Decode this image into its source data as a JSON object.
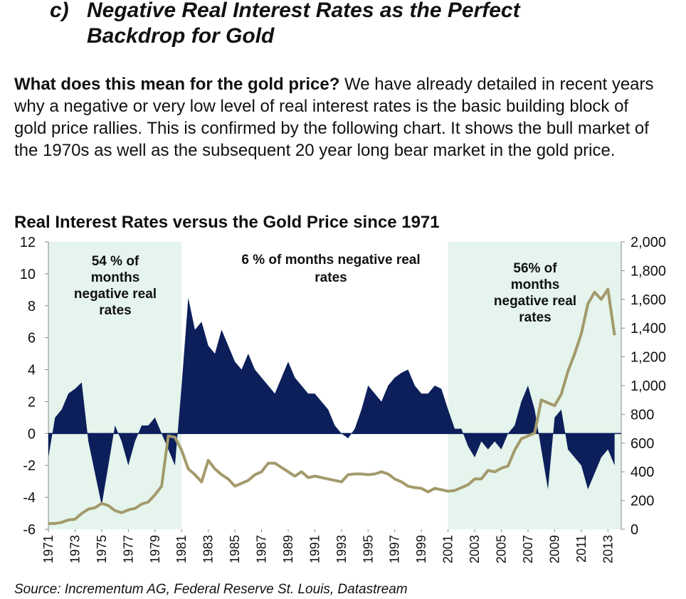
{
  "heading": {
    "marker": "c)",
    "title_lines": [
      "Negative Real Interest Rates as the Perfect",
      "Backdrop for Gold"
    ]
  },
  "intro": {
    "lead": "What does this mean for the gold price?",
    "text": "We have already detailed in recent years why a negative or very low level of real interest rates is the basic building block of gold price rallies. This is confirmed by the following chart. It shows the bull market of the 1970s as well as the subsequent 20 year long bear market in the gold price."
  },
  "chart_data": {
    "type": "area",
    "title": "Real Interest Rates versus the Gold Price since 1971",
    "x": [
      1971,
      1971.5,
      1972,
      1972.5,
      1973,
      1973.5,
      1974,
      1974.5,
      1975,
      1975.5,
      1976,
      1976.5,
      1977,
      1977.5,
      1978,
      1978.5,
      1979,
      1979.5,
      1980,
      1980.5,
      1981,
      1981.5,
      1982,
      1982.5,
      1983,
      1983.5,
      1984,
      1984.5,
      1985,
      1985.5,
      1986,
      1986.5,
      1987,
      1987.5,
      1988,
      1988.5,
      1989,
      1989.5,
      1990,
      1990.5,
      1991,
      1991.5,
      1992,
      1992.5,
      1993,
      1993.5,
      1994,
      1994.5,
      1995,
      1995.5,
      1996,
      1996.5,
      1997,
      1997.5,
      1998,
      1998.5,
      1999,
      1999.5,
      2000,
      2000.5,
      2001,
      2001.5,
      2002,
      2002.5,
      2003,
      2003.5,
      2004,
      2004.5,
      2005,
      2005.5,
      2006,
      2006.5,
      2007,
      2007.5,
      2008,
      2008.5,
      2009,
      2009.5,
      2010,
      2010.5,
      2011,
      2011.5,
      2012,
      2012.5,
      2013,
      2013.5
    ],
    "xlim": [
      1971,
      2014
    ],
    "xticks": [
      1971,
      1973,
      1975,
      1977,
      1979,
      1981,
      1983,
      1985,
      1987,
      1989,
      1991,
      1993,
      1995,
      1997,
      1999,
      2001,
      2003,
      2005,
      2007,
      2009,
      2011,
      2013
    ],
    "ylim": [
      -6,
      12
    ],
    "yticks": [
      -6,
      -4,
      -2,
      0,
      2,
      4,
      6,
      8,
      10,
      12
    ],
    "y2lim": [
      0,
      2000
    ],
    "y2ticks": [
      0,
      200,
      400,
      600,
      800,
      {
        "value": 1000,
        "label": "1,000"
      },
      {
        "value": 1200,
        "label": "1,200"
      },
      {
        "value": 1400,
        "label": "1,400"
      },
      {
        "value": 1600,
        "label": "1,600"
      },
      {
        "value": 1800,
        "label": "1,800"
      },
      {
        "value": 2000,
        "label": "2,000"
      }
    ],
    "series": [
      {
        "type": "area",
        "color": "#0c1f5b",
        "values": [
          -1.5,
          1.0,
          1.5,
          2.5,
          2.8,
          3.2,
          -0.5,
          -2.5,
          -4.5,
          -2.0,
          0.5,
          -0.5,
          -2.0,
          -0.5,
          0.5,
          0.5,
          1.0,
          0.0,
          -1.0,
          -2.0,
          3.0,
          8.5,
          6.5,
          7.0,
          5.5,
          5.0,
          6.5,
          5.5,
          4.5,
          4.0,
          5.0,
          4.0,
          3.5,
          3.0,
          2.5,
          3.5,
          4.5,
          3.5,
          3.0,
          2.5,
          2.5,
          2.0,
          1.5,
          0.5,
          0.0,
          -0.3,
          0.3,
          1.5,
          3.0,
          2.5,
          2.0,
          3.0,
          3.5,
          3.8,
          4.0,
          3.0,
          2.5,
          2.5,
          3.0,
          2.8,
          1.5,
          0.3,
          0.3,
          -0.8,
          -1.5,
          -0.5,
          -1.0,
          -0.5,
          -1.0,
          0.0,
          0.5,
          2.0,
          3.0,
          1.5,
          -1.0,
          -3.5,
          1.0,
          1.5,
          -1.0,
          -1.5,
          -2.0,
          -3.5,
          -2.5,
          -1.5,
          -1.0,
          -2.0
        ]
      },
      {
        "type": "line",
        "axis": "y2",
        "color": "#a39a6c",
        "values": [
          40,
          40,
          48,
          65,
          70,
          110,
          140,
          150,
          180,
          165,
          130,
          115,
          135,
          145,
          175,
          190,
          240,
          300,
          650,
          640,
          550,
          420,
          380,
          330,
          480,
          420,
          380,
          350,
          300,
          320,
          340,
          380,
          400,
          460,
          460,
          430,
          400,
          370,
          400,
          360,
          370,
          360,
          350,
          340,
          330,
          380,
          385,
          385,
          380,
          385,
          400,
          385,
          350,
          330,
          300,
          290,
          285,
          260,
          285,
          275,
          265,
          270,
          290,
          310,
          350,
          350,
          410,
          400,
          425,
          440,
          550,
          630,
          650,
          670,
          900,
          880,
          860,
          940,
          1100,
          1220,
          1360,
          1570,
          1650,
          1600,
          1670,
          1350
        ]
      }
    ],
    "highlight": {
      "color": "#e5f4ec",
      "ranges": [
        [
          1971,
          1981
        ],
        [
          2001,
          2014
        ]
      ]
    },
    "annotations": [
      {
        "lines": [
          "54 % of",
          "months",
          "negative real",
          "rates"
        ]
      },
      {
        "lines": [
          "6 %  of months negative real",
          "rates"
        ]
      },
      {
        "lines": [
          "56% of",
          "months",
          "negative real",
          "rates"
        ]
      }
    ],
    "source": "Source: Incrementum AG, Federal Reserve St. Louis, Datastream"
  }
}
